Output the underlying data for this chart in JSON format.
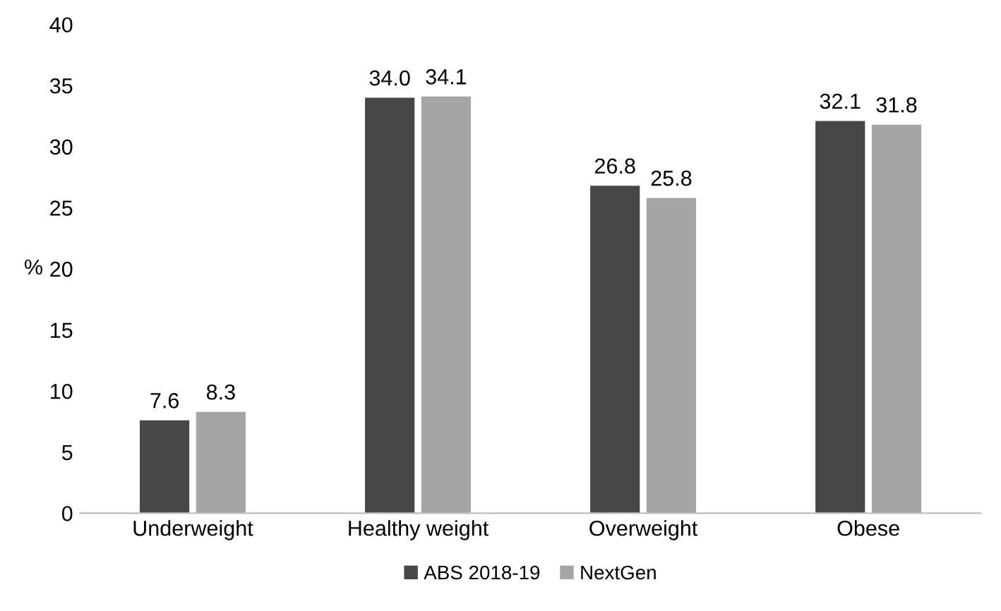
{
  "chart_data": {
    "type": "bar",
    "ylabel": "%",
    "categories": [
      "Underweight",
      "Healthy weight",
      "Overweight",
      "Obese"
    ],
    "series": [
      {
        "name": "ABS 2018-19",
        "color": "#474747",
        "values": [
          7.6,
          34.0,
          26.8,
          32.1
        ],
        "value_labels": [
          "7.6",
          "34.0",
          "26.8",
          "32.1"
        ]
      },
      {
        "name": "NextGen",
        "color": "#a5a5a5",
        "values": [
          8.3,
          34.1,
          25.8,
          31.8
        ],
        "value_labels": [
          "8.3",
          "34.1",
          "25.8",
          "31.8"
        ]
      }
    ],
    "ylim": [
      0,
      40
    ],
    "yticks": [
      0,
      5,
      10,
      15,
      20,
      25,
      30,
      35,
      40
    ],
    "grid": false,
    "legend": "bottom"
  }
}
